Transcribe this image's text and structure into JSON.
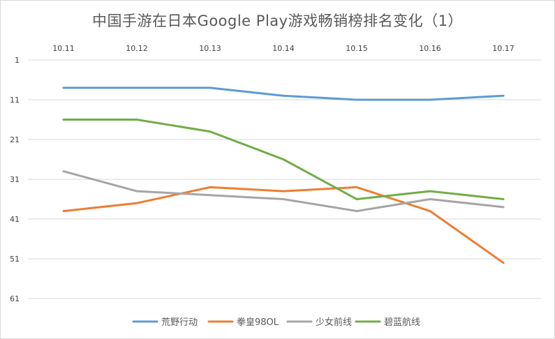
{
  "chart_data": {
    "type": "line",
    "title": "中国手游在日本Google Play游戏畅销榜排名变化（1）",
    "categories": [
      "10.11",
      "10.12",
      "10.13",
      "10.14",
      "10.15",
      "10.16",
      "10.17"
    ],
    "y_ticks": [
      "1",
      "11",
      "21",
      "31",
      "41",
      "51",
      "61"
    ],
    "ylim": [
      1,
      61
    ],
    "y_reversed": true,
    "x_axis_position": "top",
    "grid": true,
    "legend_position": "bottom",
    "series": [
      {
        "name": "荒野行动",
        "color": "#5b9bd5",
        "values": [
          8,
          8,
          8,
          10,
          11,
          11,
          10
        ]
      },
      {
        "name": "拳皇98OL",
        "color": "#ed7d31",
        "values": [
          39,
          37,
          33,
          34,
          33,
          39,
          52
        ]
      },
      {
        "name": "少女前线",
        "color": "#a5a5a5",
        "values": [
          29,
          34,
          35,
          36,
          39,
          36,
          38
        ]
      },
      {
        "name": "碧蓝航线",
        "color": "#70ad47",
        "values": [
          16,
          16,
          19,
          26,
          36,
          34,
          36
        ]
      }
    ]
  }
}
